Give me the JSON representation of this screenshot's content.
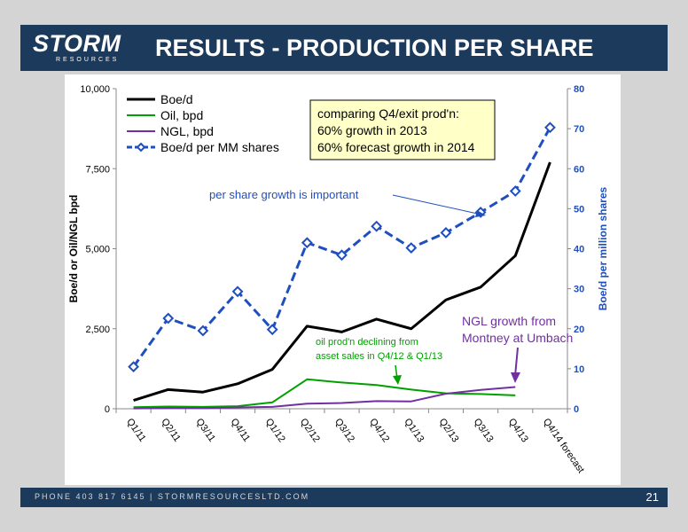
{
  "header": {
    "title": "RESULTS - PRODUCTION PER SHARE",
    "logo_main": "STORM",
    "logo_sub": "RESOURCES"
  },
  "footer": {
    "contact": "PHONE 403 817 6145   |   STORMRESOURCESLTD.COM",
    "page_number": "21"
  },
  "chart_data": {
    "type": "line",
    "categories": [
      "Q1/11",
      "Q2/11",
      "Q3/11",
      "Q4/11",
      "Q1/12",
      "Q2/12",
      "Q3/12",
      "Q4/12",
      "Q1/13",
      "Q2/13",
      "Q3/13",
      "Q4/13",
      "Q4/14 forecast"
    ],
    "ylabel_left": "Boe/d or Oil/NGL bpd",
    "ylabel_right": "Boe/d per million shares",
    "y_left": {
      "min": 0,
      "max": 10000,
      "ticks": [
        0,
        2500,
        5000,
        7500,
        10000
      ],
      "tick_labels": [
        "0",
        "2,500",
        "5,000",
        "7,500",
        "10,000"
      ]
    },
    "y_right": {
      "min": 0,
      "max": 80,
      "ticks": [
        0,
        10,
        20,
        30,
        40,
        50,
        60,
        70,
        80
      ],
      "tick_labels": [
        "0",
        "10",
        "20",
        "30",
        "40",
        "50",
        "60",
        "70",
        "80"
      ]
    },
    "series": [
      {
        "name": "Boe/d",
        "axis": "left",
        "color": "#000000",
        "style": "solid",
        "values": [
          260,
          600,
          520,
          780,
          1230,
          2580,
          2400,
          2800,
          2500,
          3400,
          3800,
          4780,
          7700
        ]
      },
      {
        "name": "Oil, bpd",
        "axis": "left",
        "color": "#00a000",
        "style": "solid",
        "values": [
          50,
          70,
          60,
          80,
          200,
          920,
          820,
          740,
          600,
          480,
          460,
          420,
          null
        ]
      },
      {
        "name": "NGL, bpd",
        "axis": "left",
        "color": "#7030a0",
        "style": "solid",
        "values": [
          10,
          20,
          20,
          40,
          60,
          160,
          180,
          240,
          230,
          470,
          590,
          680,
          null
        ]
      },
      {
        "name": "Boe/d per MM shares",
        "axis": "right",
        "color": "#1f4fbf",
        "style": "dashed",
        "marker": "diamond",
        "values": [
          10.5,
          22.6,
          19.5,
          29.3,
          19.8,
          41.5,
          38.4,
          45.6,
          40.2,
          44.0,
          49.1,
          54.4,
          70.3
        ]
      }
    ],
    "legend_position": "top-left",
    "annotations": {
      "box": {
        "lines": [
          "comparing Q4/exit prod'n:",
          "60% growth in 2013",
          "60% forecast growth in 2014"
        ]
      },
      "per_share": "per share growth is important",
      "ngl_growth": [
        "NGL growth from",
        "Montney at Umbach"
      ],
      "oil_decline": [
        "oil prod'n declining from",
        "asset sales in Q4/12 & Q1/13"
      ]
    }
  }
}
